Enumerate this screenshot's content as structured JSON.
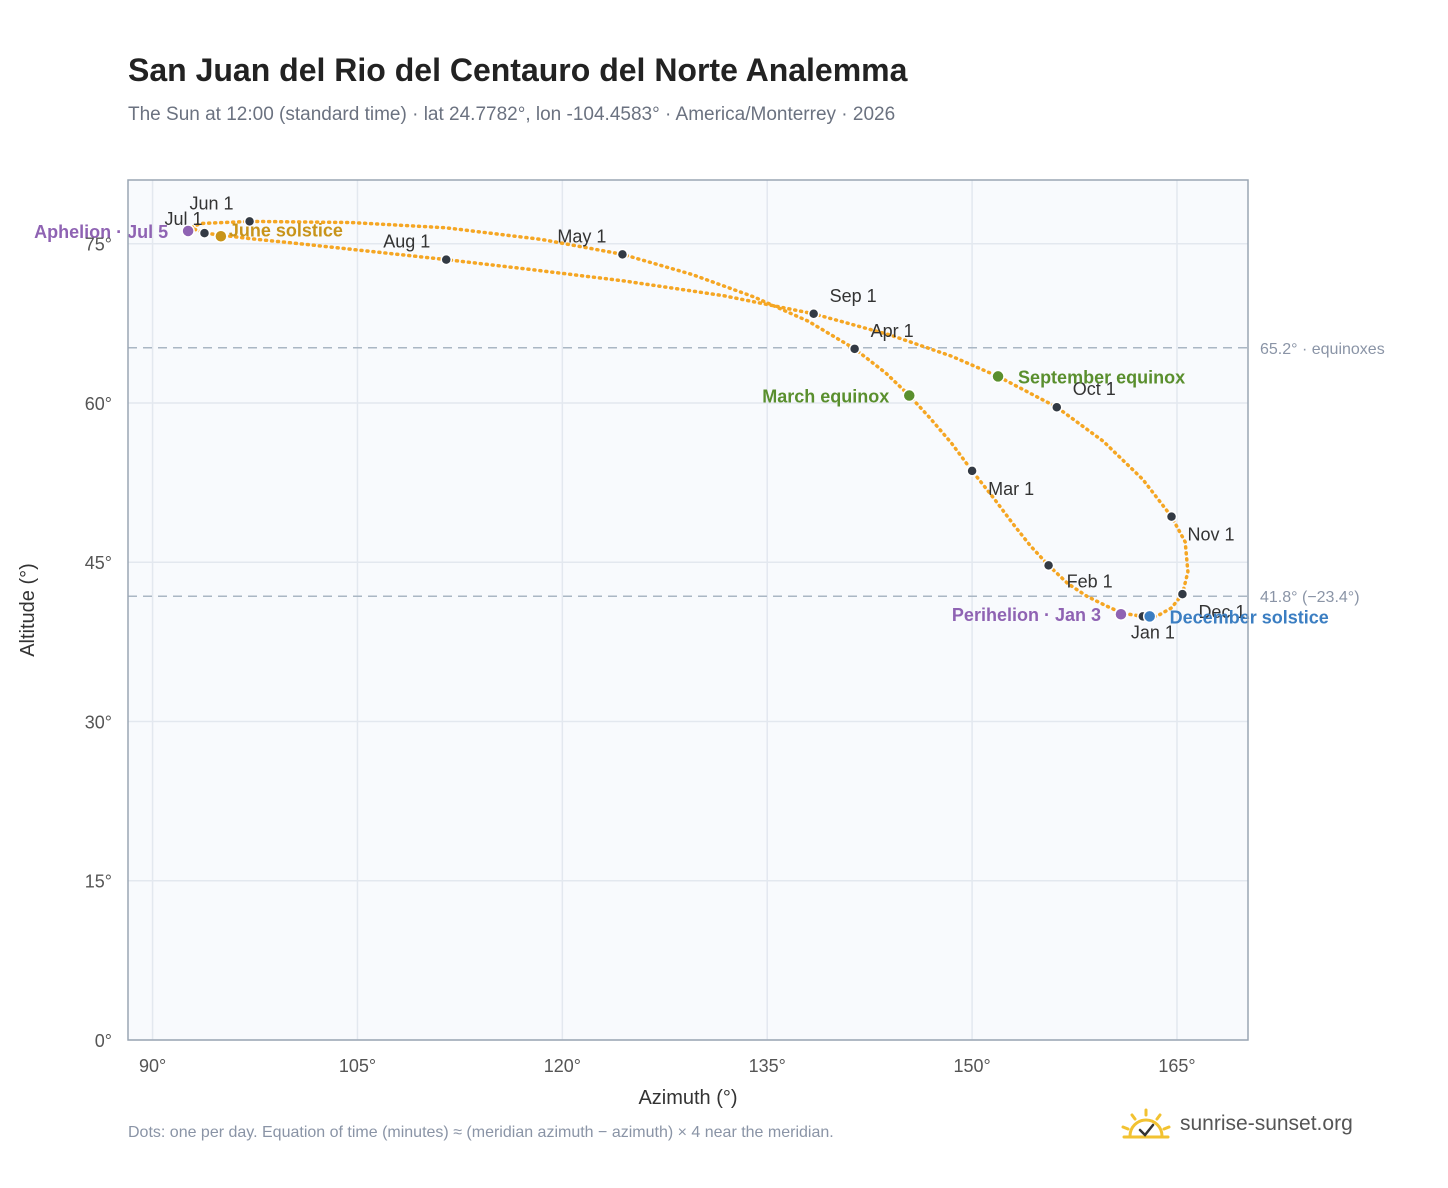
{
  "title": "San Juan del Rio del Centauro del Norte Analemma",
  "subtitle": "The Sun at 12:00 (standard time) · lat 24.7782°, lon -104.4583° · America/Monterrey · 2026",
  "footer_note": "Dots: one per day. Equation of time (minutes) ≈ (meridian azimuth − azimuth) × 4 near the meridian.",
  "brand": {
    "text": "sunrise-sunset.org",
    "icon": "sun-logo-icon"
  },
  "colors": {
    "curve": "#f5a623",
    "month_marker": "#333a44",
    "equinox": "#5a8f2e",
    "december_solstice": "#3b7ec2",
    "june_solstice": "#c8941a",
    "apsis": "#8f63b3",
    "plot_bg": "#f8fafd",
    "grid": "#e3e8ef",
    "ref_line": "#aab7c4"
  },
  "chart_data": {
    "type": "scatter",
    "title": "San Juan del Rio del Centauro del Norte Analemma",
    "xlabel": "Azimuth (°)",
    "ylabel": "Altitude (°)",
    "xlim": [
      88.2,
      170.2
    ],
    "ylim": [
      0,
      81
    ],
    "x_ticks": [
      90,
      105,
      120,
      135,
      150,
      165
    ],
    "x_tick_labels": [
      "90°",
      "105°",
      "120°",
      "135°",
      "150°",
      "165°"
    ],
    "y_ticks": [
      0,
      15,
      30,
      45,
      60,
      75
    ],
    "y_tick_labels": [
      "0°",
      "15°",
      "30°",
      "45°",
      "60°",
      "75°"
    ],
    "grid": true,
    "reference_lines": [
      {
        "y": 65.2,
        "label": "65.2° · equinoxes"
      },
      {
        "y": 41.8,
        "label": "41.8° (−23.4°)"
      }
    ],
    "month_markers": [
      {
        "label": "Jan 1",
        "az": 162.5,
        "alt": 39.9
      },
      {
        "label": "Feb 1",
        "az": 155.6,
        "alt": 44.7
      },
      {
        "label": "Mar 1",
        "az": 150.0,
        "alt": 53.6
      },
      {
        "label": "Apr 1",
        "az": 141.4,
        "alt": 65.1
      },
      {
        "label": "May 1",
        "az": 124.4,
        "alt": 74.0
      },
      {
        "label": "Jun 1",
        "az": 97.1,
        "alt": 77.1
      },
      {
        "label": "Jul 1",
        "az": 93.8,
        "alt": 76.0
      },
      {
        "label": "Aug 1",
        "az": 111.5,
        "alt": 73.5
      },
      {
        "label": "Sep 1",
        "az": 138.4,
        "alt": 68.4
      },
      {
        "label": "Oct 1",
        "az": 156.2,
        "alt": 59.6
      },
      {
        "label": "Nov 1",
        "az": 164.6,
        "alt": 49.3
      },
      {
        "label": "Dec 1",
        "az": 165.4,
        "alt": 42.0
      }
    ],
    "events": [
      {
        "label": "March equinox",
        "az": 145.4,
        "alt": 60.7,
        "kind": "equinox"
      },
      {
        "label": "September equinox",
        "az": 151.9,
        "alt": 62.5,
        "kind": "equinox"
      },
      {
        "label": "June solstice",
        "az": 95.0,
        "alt": 75.7,
        "kind": "june_solstice"
      },
      {
        "label": "December solstice",
        "az": 163.0,
        "alt": 39.9,
        "kind": "december_solstice"
      },
      {
        "label": "Perihelion · Jan 3",
        "az": 160.9,
        "alt": 40.1,
        "kind": "apsis"
      },
      {
        "label": "Aphelion · Jul 5",
        "az": 92.6,
        "alt": 76.2,
        "kind": "apsis"
      }
    ],
    "series": [
      {
        "points": [
          [
            162.5,
            39.9
          ],
          [
            161.0,
            40.2
          ],
          [
            159.8,
            40.9
          ],
          [
            158.4,
            41.8
          ],
          [
            157.0,
            43.0
          ],
          [
            155.6,
            44.7
          ],
          [
            154.3,
            46.5
          ],
          [
            153.0,
            48.6
          ],
          [
            151.6,
            51.0
          ],
          [
            150.0,
            53.6
          ],
          [
            148.5,
            56.2
          ],
          [
            146.9,
            58.6
          ],
          [
            145.4,
            60.7
          ],
          [
            143.7,
            62.8
          ],
          [
            141.4,
            65.1
          ],
          [
            138.0,
            67.7
          ],
          [
            134.0,
            70.0
          ],
          [
            129.5,
            72.1
          ],
          [
            124.4,
            74.0
          ],
          [
            118.5,
            75.4
          ],
          [
            111.5,
            76.5
          ],
          [
            104.5,
            77.0
          ],
          [
            97.1,
            77.1
          ],
          [
            93.5,
            76.9
          ],
          [
            92.8,
            76.5
          ],
          [
            93.8,
            76.0
          ],
          [
            97.0,
            75.5
          ],
          [
            101.5,
            74.9
          ],
          [
            106.5,
            74.2
          ],
          [
            111.5,
            73.5
          ],
          [
            117.5,
            72.6
          ],
          [
            124.5,
            71.5
          ],
          [
            131.8,
            70.1
          ],
          [
            138.4,
            68.4
          ],
          [
            144.0,
            66.4
          ],
          [
            148.5,
            64.4
          ],
          [
            151.9,
            62.5
          ],
          [
            156.2,
            59.6
          ],
          [
            159.6,
            56.4
          ],
          [
            162.5,
            52.8
          ],
          [
            164.6,
            49.3
          ],
          [
            165.6,
            46.9
          ],
          [
            165.8,
            44.1
          ],
          [
            165.4,
            42.0
          ],
          [
            164.6,
            40.7
          ],
          [
            163.5,
            39.9
          ],
          [
            162.5,
            39.9
          ]
        ]
      }
    ]
  }
}
